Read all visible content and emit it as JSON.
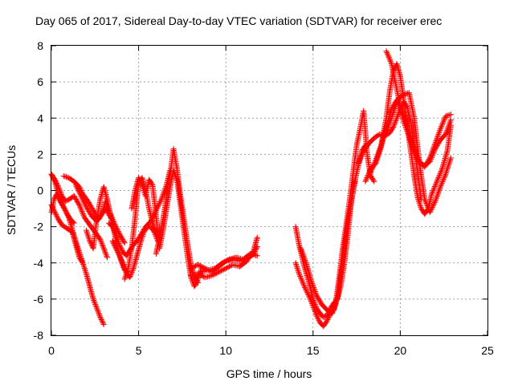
{
  "chart_data": {
    "type": "scatter",
    "title": "Day 065 of 2017, Sidereal Day-to-day VTEC variation (SDTVAR) for receiver erec",
    "xlabel": "GPS time / hours",
    "ylabel": "SDTVAR / TECUs",
    "xlim": [
      0,
      25
    ],
    "ylim": [
      -8,
      8
    ],
    "xticks": [
      "0",
      "5",
      "10",
      "15",
      "20",
      "25"
    ],
    "yticks": [
      "-8",
      "-6",
      "-4",
      "-2",
      "0",
      "2",
      "4",
      "6",
      "8"
    ],
    "grid": true,
    "marker": "+",
    "series": [
      {
        "name": "SDTVAR",
        "color": "#ff0000",
        "tracks": [
          {
            "x": [
              0.0,
              0.2,
              0.5,
              0.8,
              1.0,
              1.3,
              1.6,
              1.8,
              2.0,
              2.2,
              2.4,
              2.6,
              2.8,
              3.0
            ],
            "y": [
              0.9,
              0.5,
              -0.6,
              -1.1,
              -1.5,
              -2.5,
              -3.4,
              -4.0,
              -4.6,
              -5.3,
              -6.0,
              -6.5,
              -7.0,
              -7.4
            ]
          },
          {
            "x": [
              0.0,
              0.2,
              0.4,
              0.6,
              0.9,
              1.2,
              1.4,
              1.6,
              1.8
            ],
            "y": [
              -0.8,
              -1.2,
              -1.6,
              -1.9,
              -2.1,
              -2.3,
              -3.0,
              -3.7,
              -4.0
            ]
          },
          {
            "x": [
              0.0,
              0.15,
              0.3,
              0.5,
              0.7,
              0.9,
              1.1,
              1.3
            ],
            "y": [
              -1.2,
              -0.5,
              -0.2,
              -0.5,
              -0.9,
              -1.3,
              -1.6,
              -1.8
            ]
          },
          {
            "x": [
              0.0,
              0.2,
              0.4,
              0.6,
              0.8,
              1.0,
              1.3,
              1.6,
              1.9,
              2.2,
              2.5,
              2.8,
              3.0,
              3.2
            ],
            "y": [
              0.9,
              0.6,
              0.2,
              -0.3,
              -0.6,
              -0.5,
              -0.3,
              -0.8,
              -1.5,
              -1.9,
              -2.3,
              -2.7,
              -3.2,
              -3.7
            ]
          },
          {
            "x": [
              0.7,
              1.0,
              1.3,
              1.6,
              1.8,
              2.1,
              2.4,
              2.7,
              2.9,
              3.1,
              3.4
            ],
            "y": [
              0.8,
              0.7,
              0.5,
              0.2,
              -0.2,
              -0.6,
              -1.1,
              -1.6,
              -1.3,
              -1.0,
              -1.5
            ]
          },
          {
            "x": [
              1.4,
              1.7,
              2.0,
              2.3,
              2.6,
              2.9,
              3.1,
              3.3,
              3.6,
              3.9,
              4.2
            ],
            "y": [
              0.3,
              -0.3,
              -0.9,
              -1.4,
              -1.7,
              -1.3,
              -0.6,
              -1.1,
              -1.8,
              -2.4,
              -2.9
            ]
          },
          {
            "x": [
              2.0,
              2.2,
              2.4,
              2.6,
              2.8,
              3.0,
              3.2,
              3.4,
              3.6,
              3.8,
              4.0,
              4.2,
              4.4
            ],
            "y": [
              -2.2,
              -2.8,
              -3.2,
              -1.6,
              -0.5,
              0.2,
              -0.5,
              -1.4,
              -2.3,
              -3.2,
              -3.9,
              -4.4,
              -4.5
            ]
          },
          {
            "x": [
              3.3,
              3.5,
              3.7,
              3.9,
              4.1,
              4.3,
              4.5,
              4.7,
              4.9,
              5.1,
              5.4,
              5.7,
              6.0,
              6.3,
              6.6,
              6.8
            ],
            "y": [
              -1.8,
              -2.0,
              -2.4,
              -3.0,
              -3.4,
              -3.6,
              -3.3,
              -3.0,
              -2.8,
              -2.5,
              -2.0,
              -1.7,
              -1.1,
              -0.5,
              0.3,
              1.1
            ]
          },
          {
            "x": [
              3.5,
              3.8,
              4.1,
              4.3,
              4.5,
              4.7,
              4.9,
              5.1,
              5.3,
              5.5,
              5.7,
              5.9,
              6.1
            ],
            "y": [
              -2.8,
              -3.4,
              -4.0,
              -4.6,
              -4.8,
              -4.3,
              -3.6,
              -2.9,
              -2.3,
              -2.0,
              -2.0,
              -2.3,
              -2.8
            ]
          },
          {
            "x": [
              4.2,
              4.4,
              4.6,
              4.8,
              5.0,
              5.2,
              5.4,
              5.6,
              5.8,
              6.0,
              6.2
            ],
            "y": [
              -4.9,
              -4.3,
              -3.2,
              -1.5,
              0.5,
              0.7,
              0.0,
              -1.0,
              -1.8,
              -2.3,
              -2.7
            ]
          },
          {
            "x": [
              4.6,
              4.8,
              5.0,
              5.2,
              5.4,
              5.6,
              5.8,
              6.0,
              6.2,
              6.4,
              6.6,
              6.8,
              7.0,
              7.2,
              7.4,
              7.6,
              7.8,
              8.0,
              8.2,
              8.4,
              8.6
            ],
            "y": [
              -1.0,
              0.0,
              0.7,
              0.3,
              -0.3,
              0.6,
              0.3,
              -1.4,
              -3.2,
              -2.2,
              -1.0,
              0.2,
              1.1,
              0.6,
              -0.8,
              -2.2,
              -3.6,
              -4.8,
              -5.3,
              -4.9,
              -4.3
            ]
          },
          {
            "x": [
              6.0,
              6.2,
              6.4,
              6.6,
              6.8,
              7.0,
              7.2,
              7.4,
              7.6,
              7.8,
              8.0,
              8.2,
              8.4
            ],
            "y": [
              -3.5,
              -2.6,
              -1.6,
              -0.4,
              0.8,
              2.3,
              1.2,
              -0.3,
              -1.6,
              -2.9,
              -4.1,
              -4.8,
              -5.1
            ]
          },
          {
            "x": [
              8.0,
              8.4,
              8.8,
              9.2,
              9.6,
              10.0,
              10.4,
              10.8,
              11.2,
              11.6,
              11.8
            ],
            "y": [
              -4.3,
              -4.1,
              -4.3,
              -4.5,
              -4.2,
              -3.9,
              -3.8,
              -3.9,
              -3.8,
              -3.5,
              -3.1
            ]
          },
          {
            "x": [
              8.0,
              8.4,
              8.8,
              9.2,
              9.6,
              10.0,
              10.4,
              10.8,
              11.2,
              11.6,
              11.8
            ],
            "y": [
              -4.7,
              -4.6,
              -4.8,
              -4.7,
              -4.5,
              -4.3,
              -4.1,
              -4.2,
              -3.9,
              -3.3,
              -2.6
            ]
          },
          {
            "x": [
              8.2,
              8.6,
              9.0,
              9.4,
              9.8,
              10.2,
              10.6,
              11.0,
              11.4,
              11.8
            ],
            "y": [
              -4.9,
              -4.5,
              -4.4,
              -4.3,
              -4.0,
              -3.8,
              -3.7,
              -3.8,
              -3.5,
              -3.6
            ]
          },
          {
            "x": [
              14.0,
              14.2,
              14.5,
              14.8,
              15.0,
              15.2,
              15.4,
              15.6,
              15.8,
              16.0,
              16.2,
              16.4,
              16.6,
              16.8,
              17.0,
              17.2,
              17.5,
              17.8,
              18.0
            ],
            "y": [
              -2.0,
              -3.0,
              -4.2,
              -5.2,
              -6.0,
              -6.5,
              -6.8,
              -7.0,
              -6.9,
              -6.5,
              -6.2,
              -6.0,
              -5.2,
              -4.0,
              -2.4,
              -0.5,
              1.0,
              2.2,
              2.5
            ]
          },
          {
            "x": [
              14.0,
              14.2,
              14.5,
              14.8,
              15.0,
              15.2,
              15.4,
              15.6,
              15.8,
              16.0,
              16.2,
              16.4,
              16.6,
              16.8,
              17.0,
              17.2,
              17.4
            ],
            "y": [
              -4.0,
              -4.6,
              -5.3,
              -5.9,
              -6.4,
              -6.9,
              -7.3,
              -7.5,
              -7.2,
              -6.8,
              -6.6,
              -5.9,
              -4.6,
              -3.1,
              -1.7,
              -0.6,
              0.5
            ]
          },
          {
            "x": [
              14.3,
              14.6,
              14.9,
              15.2,
              15.5,
              15.8,
              16.1,
              16.3,
              16.5,
              16.7,
              16.9,
              17.1,
              17.3,
              17.5,
              17.7,
              17.9,
              18.1,
              18.3,
              18.5
            ],
            "y": [
              -3.2,
              -4.0,
              -5.0,
              -5.8,
              -6.3,
              -6.6,
              -6.8,
              -6.2,
              -4.8,
              -3.2,
              -1.9,
              -0.5,
              1.0,
              2.5,
              3.4,
              4.4,
              2.0,
              0.8,
              0.5
            ]
          },
          {
            "x": [
              17.6,
              17.9,
              18.2,
              18.5,
              18.8,
              19.1,
              19.4,
              19.6,
              19.8,
              20.0,
              20.2,
              20.4,
              20.6,
              20.8,
              21.0,
              21.2
            ],
            "y": [
              1.5,
              2.2,
              2.6,
              2.9,
              3.1,
              3.0,
              3.2,
              3.5,
              4.0,
              4.5,
              4.9,
              4.6,
              3.8,
              2.5,
              0.9,
              -0.5
            ]
          },
          {
            "x": [
              18.0,
              18.3,
              18.6,
              18.9,
              19.2,
              19.5,
              19.8,
              20.0,
              20.2,
              20.5,
              20.8,
              21.1,
              21.4,
              21.7,
              22.0,
              22.3,
              22.6,
              22.9
            ],
            "y": [
              0.5,
              1.2,
              1.5,
              2.4,
              3.5,
              4.5,
              5.0,
              4.7,
              4.1,
              3.2,
              2.3,
              1.6,
              1.3,
              1.8,
              2.6,
              3.4,
              4.1,
              4.2
            ]
          },
          {
            "x": [
              18.3,
              18.6,
              18.9,
              19.2,
              19.4,
              19.6,
              19.8,
              20.0,
              20.2,
              20.4,
              20.6,
              20.8,
              21.0,
              21.2,
              21.4,
              21.6,
              21.8,
              22.1,
              22.4,
              22.7,
              22.9
            ],
            "y": [
              1.0,
              1.7,
              2.5,
              4.0,
              5.5,
              6.6,
              7.0,
              6.3,
              5.0,
              3.6,
              2.2,
              0.8,
              -0.4,
              -1.0,
              -1.3,
              -1.0,
              -0.2,
              0.5,
              1.2,
              2.2,
              3.6
            ]
          },
          {
            "x": [
              19.2,
              19.5,
              19.8,
              20.0,
              20.2,
              20.5,
              20.8,
              21.1,
              21.4,
              21.7,
              22.0,
              22.3,
              22.6,
              22.9
            ],
            "y": [
              7.7,
              7.0,
              5.6,
              4.6,
              3.8,
              3.0,
              2.1,
              1.5,
              1.4,
              1.6,
              2.3,
              2.8,
              3.1,
              3.9
            ]
          },
          {
            "x": [
              19.0,
              19.3,
              19.6,
              19.9,
              20.2,
              20.5,
              20.8,
              21.1,
              21.4,
              21.7,
              22.0,
              22.3,
              22.6,
              22.9
            ],
            "y": [
              3.0,
              3.5,
              4.3,
              5.1,
              5.3,
              5.4,
              4.0,
              1.5,
              -0.5,
              -1.2,
              -0.6,
              0.2,
              0.9,
              1.8
            ]
          }
        ]
      }
    ]
  }
}
